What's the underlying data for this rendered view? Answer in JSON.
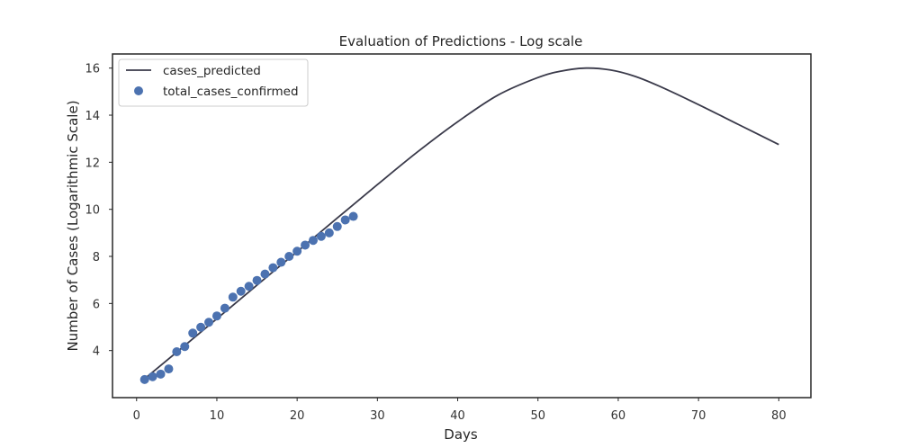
{
  "chart_data": {
    "type": "line",
    "title": "Evaluation of Predictions - Log scale",
    "xlabel": "Days",
    "ylabel": "Number of Cases (Logarithmic Scale)",
    "xlim": [
      -3,
      84
    ],
    "ylim": [
      2.0,
      16.6
    ],
    "xticks": [
      "0",
      "10",
      "20",
      "30",
      "40",
      "50",
      "60",
      "70",
      "80"
    ],
    "yticks": [
      "4",
      "6",
      "8",
      "10",
      "12",
      "14",
      "16"
    ],
    "grid": false,
    "legend_position": "top-left",
    "series": [
      {
        "name": "cases_predicted",
        "kind": "line",
        "color": "#3a3a4a",
        "x": [
          1,
          5,
          10,
          15,
          20,
          25,
          30,
          35,
          40,
          45,
          50,
          53,
          56,
          59,
          62,
          65,
          70,
          75,
          80
        ],
        "y": [
          2.8,
          3.93,
          5.35,
          6.78,
          8.2,
          9.63,
          11.05,
          12.44,
          13.72,
          14.85,
          15.6,
          15.88,
          16.0,
          15.92,
          15.66,
          15.25,
          14.45,
          13.6,
          12.75
        ]
      },
      {
        "name": "total_cases_confirmed",
        "kind": "scatter",
        "color": "#4c72b0",
        "x": [
          1,
          2,
          3,
          4,
          5,
          6,
          7,
          8,
          9,
          10,
          11,
          12,
          13,
          14,
          15,
          16,
          17,
          18,
          19,
          20,
          21,
          22,
          23,
          24,
          25,
          26,
          27
        ],
        "y": [
          2.77,
          2.89,
          3.0,
          3.22,
          3.95,
          4.17,
          4.74,
          4.99,
          5.2,
          5.47,
          5.8,
          6.27,
          6.52,
          6.73,
          6.98,
          7.25,
          7.52,
          7.75,
          8.0,
          8.22,
          8.48,
          8.68,
          8.85,
          9.0,
          9.27,
          9.55,
          9.7
        ]
      }
    ]
  }
}
